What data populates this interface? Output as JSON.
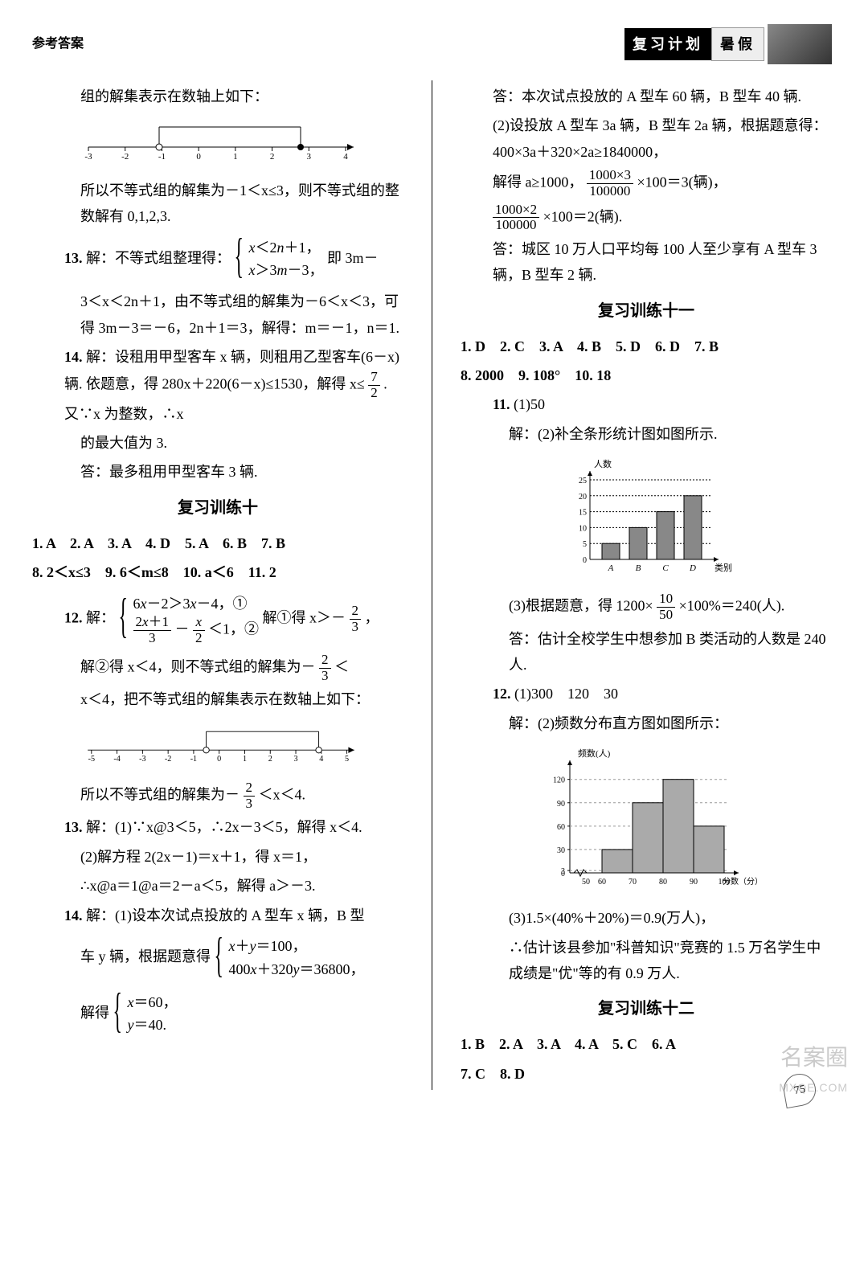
{
  "header": {
    "left": "参考答案",
    "badge_dark": "复习计划",
    "badge_light": "暑假"
  },
  "col_left": {
    "p1": "组的解集表示在数轴上如下：",
    "numline1": {
      "min": -3,
      "max": 4,
      "ticks": [
        -3,
        -2,
        -1,
        0,
        1,
        2,
        3,
        4
      ],
      "open": -1,
      "closed": 3
    },
    "p2": "所以不等式组的解集为－1＜x≤3，则不等式组的整数解有 0,1,2,3.",
    "q13": "13.",
    "q13_text1": "解：不等式组整理得：",
    "q13_sys1_a": "x＜2n＋1，",
    "q13_sys1_b": "x＞3m－3，",
    "q13_text2": "即 3m－",
    "q13_text3": "3＜x＜2n＋1，由不等式组的解集为－6＜x＜3，可得 3m－3＝－6，2n＋1＝3，解得：m＝－1，n＝1.",
    "q14": "14.",
    "q14_text1": "解：设租用甲型客车 x 辆，则租用乙型客车(6－x)辆. 依题意，得 280x＋220(6－x)≤1530，解得 x≤",
    "q14_frac": {
      "num": "7",
      "den": "2"
    },
    "q14_text2": ". 又∵x 为整数，∴x",
    "q14_text3": "的最大值为 3.",
    "q14_text4": "答：最多租用甲型客车 3 辆.",
    "sec10": "复习训练十",
    "sec10_row1": "1. A　2. A　3. A　4. D　5. A　6. B　7. B",
    "sec10_row2": "8. 2＜x≤3　9. 6＜m≤8　10. a＜6　11. 2",
    "q12": "12.",
    "q12_text1": "解：",
    "q12_sys_a": "6x－2＞3x－4，①",
    "q12_sys_b_pre": "",
    "q12_f1": {
      "num": "2x＋1",
      "den": "3"
    },
    "q12_f2": {
      "num": "x",
      "den": "2"
    },
    "q12_sys_b_post": "＜1，②",
    "q12_text2": "解①得 x＞－",
    "q12_f3": {
      "num": "2",
      "den": "3"
    },
    "q12_text3": "，",
    "q12_text4": "解②得 x＜4，则不等式组的解集为－",
    "q12_f4": {
      "num": "2",
      "den": "3"
    },
    "q12_text5": "＜",
    "q12_text6": "x＜4，把不等式组的解集表示在数轴上如下：",
    "numline2": {
      "min": -5,
      "max": 5,
      "ticks": [
        -5,
        -4,
        -3,
        -2,
        -1,
        0,
        1,
        2,
        3,
        4,
        5
      ],
      "open": -0.67,
      "open2": 4
    },
    "q12_text7": "所以不等式组的解集为－",
    "q12_f5": {
      "num": "2",
      "den": "3"
    },
    "q12_text8": "＜x＜4.",
    "q13b": "13.",
    "q13b_t1": "解：(1)∵x@3＜5，∴2x－3＜5，解得 x＜4.",
    "q13b_t2": "(2)解方程 2(2x－1)＝x＋1，得 x＝1，",
    "q13b_t3": "∴x@a＝1@a＝2－a＜5，解得 a＞－3.",
    "q14b": "14.",
    "q14b_t1": "解：(1)设本次试点投放的 A 型车 x 辆，B 型",
    "q14b_t2": "车 y 辆，根据题意得",
    "q14b_sys_a": "x＋y＝100，",
    "q14b_sys_b": "400x＋320y＝36800，",
    "q14b_t3": "解得",
    "q14b_sys2_a": "x＝60，",
    "q14b_sys2_b": "y＝40."
  },
  "col_right": {
    "p1": "答：本次试点投放的 A 型车 60 辆，B 型车 40 辆.",
    "p2": "(2)设投放 A 型车 3a 辆，B 型车 2a 辆，根据题意得：400×3a＋320×2a≥1840000，",
    "p3_a": "解得 a≥1000，",
    "p3_f1": {
      "num": "1000×3",
      "den": "100000"
    },
    "p3_b": "×100＝3(辆)，",
    "p4_f": {
      "num": "1000×2",
      "den": "100000"
    },
    "p4_b": "×100＝2(辆).",
    "p5": "答：城区 10 万人口平均每 100 人至少享有 A 型车 3 辆，B 型车 2 辆.",
    "sec11": "复习训练十一",
    "sec11_row1": "1. D　2. C　3. A　4. B　5. D　6. D　7. B",
    "sec11_row2": "8. 2000　9. 108°　10. 18",
    "q11": "11.",
    "q11_t1": "(1)50",
    "q11_t2": "解：(2)补全条形统计图如图所示.",
    "barchart1": {
      "ylabel": "人数",
      "xlabel": "类别",
      "ymax": 25,
      "ystep": 5,
      "categories": [
        "A",
        "B",
        "C",
        "D"
      ],
      "values": [
        5,
        10,
        15,
        20
      ],
      "bar_color": "#888888",
      "grid_dash": true
    },
    "q11_t3a": "(3)根据题意，得 1200×",
    "q11_f": {
      "num": "10",
      "den": "50"
    },
    "q11_t3b": "×100%＝240(人).",
    "q11_t4": "答：估计全校学生中想参加 B 类活动的人数是 240 人.",
    "q12": "12.",
    "q12_t1": "(1)300　120　30",
    "q12_t2": "解：(2)频数分布直方图如图所示：",
    "barchart2": {
      "ylabel": "频数(人)",
      "xlabel": "分数（分）",
      "yticks": [
        3,
        30,
        60,
        90,
        120
      ],
      "xticks": [
        50,
        60,
        70,
        80,
        90,
        100
      ],
      "bins": [
        [
          60,
          70,
          30
        ],
        [
          70,
          80,
          90
        ],
        [
          80,
          90,
          120
        ],
        [
          90,
          100,
          60
        ]
      ],
      "bar_color": "#aaaaaa"
    },
    "q12_t3": "(3)1.5×(40%＋20%)＝0.9(万人)，",
    "q12_t4": "∴估计该县参加\"科普知识\"竞赛的 1.5 万名学生中成绩是\"优\"等的有 0.9 万人.",
    "sec12": "复习训练十二",
    "sec12_row1": "1. B　2. A　3. A　4. A　5. C　6. A",
    "sec12_row2": "7. C　8. D"
  },
  "footer": {
    "page": "75"
  },
  "watermark": {
    "main": "名案圈",
    "sub": "MXQE.COM"
  }
}
